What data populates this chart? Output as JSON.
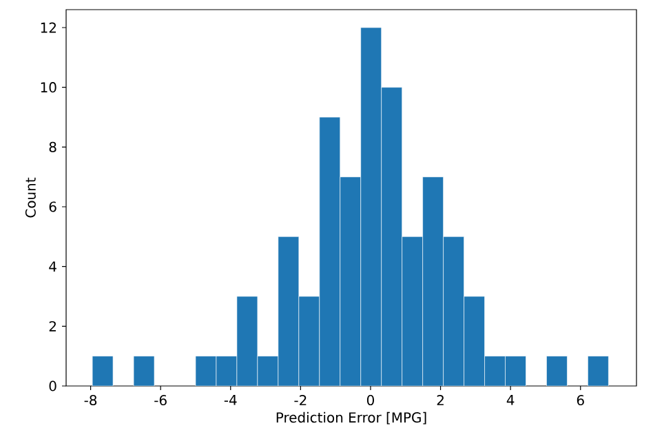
{
  "chart_data": {
    "type": "histogram",
    "xlabel": "Prediction Error [MPG]",
    "ylabel": "Count",
    "bins": [
      -7.95,
      -7.36,
      -6.77,
      -6.18,
      -5.59,
      -5.0,
      -4.41,
      -3.82,
      -3.23,
      -2.64,
      -2.05,
      -1.46,
      -0.87,
      -0.28,
      0.31,
      0.9,
      1.49,
      2.08,
      2.67,
      3.26,
      3.85,
      4.44,
      5.03,
      5.62,
      6.21,
      6.8
    ],
    "values": [
      1,
      0,
      1,
      0,
      0,
      1,
      1,
      3,
      1,
      5,
      3,
      9,
      7,
      12,
      10,
      5,
      7,
      5,
      3,
      1,
      1,
      0,
      1,
      0,
      1
    ],
    "color": "#1f77b4",
    "xlim": [
      -8.7,
      7.6
    ],
    "ylim": [
      0,
      12.6
    ],
    "xticks": [
      -8,
      -6,
      -4,
      -2,
      0,
      2,
      4,
      6
    ],
    "yticks": [
      0,
      2,
      4,
      6,
      8,
      10,
      12
    ],
    "grid": false
  }
}
